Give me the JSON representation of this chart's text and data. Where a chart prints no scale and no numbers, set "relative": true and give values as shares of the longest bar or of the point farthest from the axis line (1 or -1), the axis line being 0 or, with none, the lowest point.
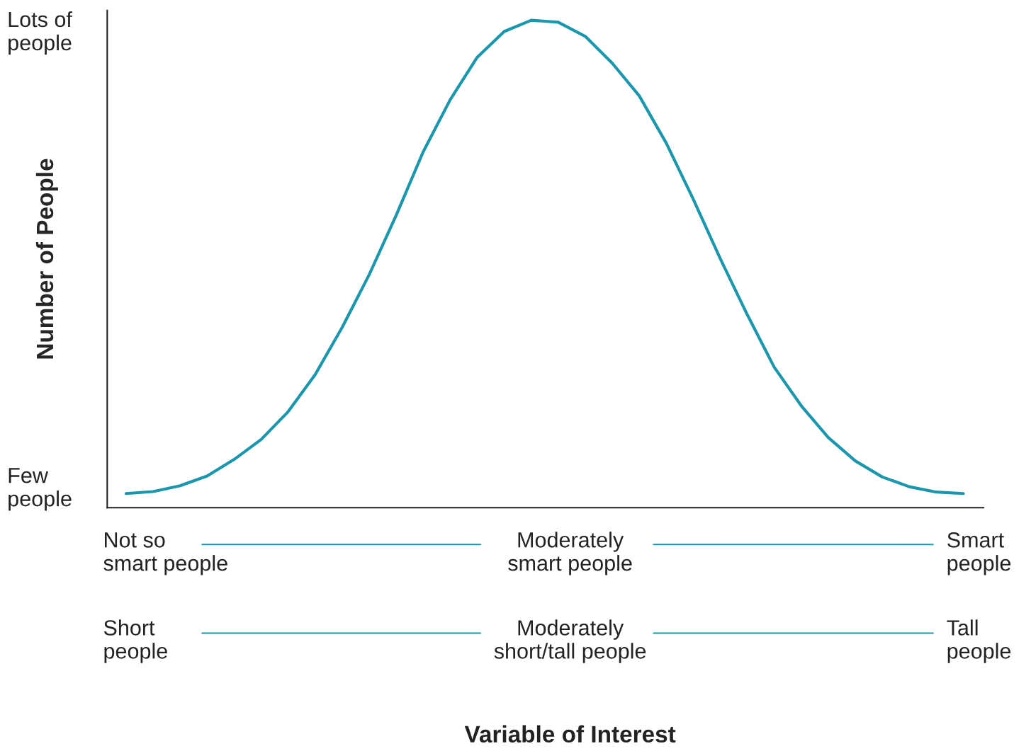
{
  "chart_data": {
    "type": "line",
    "relative": true,
    "ylabel": "Number of People",
    "categories": [
      null,
      null,
      null,
      null,
      null,
      null,
      null,
      null,
      null,
      null,
      null,
      null,
      null,
      null,
      null,
      null,
      null,
      null,
      null,
      null,
      null,
      null,
      null,
      null,
      null,
      null,
      null,
      null,
      null,
      null,
      null,
      null
    ],
    "series": [
      {
        "color": "#1b97ad",
        "values": [
          0.029,
          0.033,
          0.045,
          0.065,
          0.099,
          0.14,
          0.197,
          0.273,
          0.37,
          0.478,
          0.6,
          0.73,
          0.837,
          0.924,
          0.977,
          1.0,
          0.996,
          0.967,
          0.912,
          0.845,
          0.748,
          0.633,
          0.511,
          0.396,
          0.288,
          0.209,
          0.144,
          0.096,
          0.063,
          0.043,
          0.032,
          0.029
        ]
      }
    ],
    "annotations": [
      "Lots of\npeople",
      "Few\npeople",
      "Not so\nsmart people",
      "Moderately\nsmart people",
      "Smart\npeople",
      "Short\npeople",
      "Moderately\nshort/tall people",
      "Tall\npeople",
      "Variable of Interest"
    ],
    "legend": false,
    "marker": "none",
    "line_style": "solid"
  }
}
